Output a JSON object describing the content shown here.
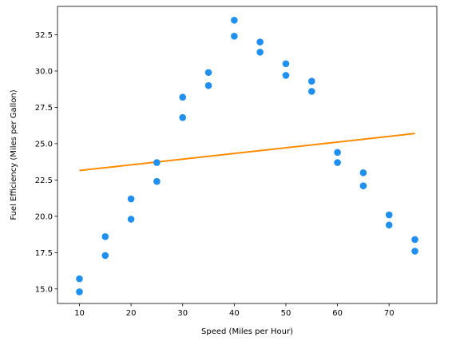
{
  "chart_data": {
    "type": "scatter",
    "title": "",
    "xlabel": "Speed (Miles per Hour)",
    "ylabel": "Fuel Efficiency (Miles per Gallon)",
    "xlim": [
      5.75,
      79.25
    ],
    "ylim": [
      14.0,
      34.45
    ],
    "grid": false,
    "xticks": [
      10,
      20,
      30,
      40,
      50,
      60,
      70
    ],
    "xtick_labels": [
      "10",
      "20",
      "30",
      "40",
      "50",
      "60",
      "70"
    ],
    "yticks": [
      15.0,
      17.5,
      20.0,
      22.5,
      25.0,
      27.5,
      30.0,
      32.5
    ],
    "ytick_labels": [
      "15.0",
      "17.5",
      "20.0",
      "22.5",
      "25.0",
      "27.5",
      "30.0",
      "32.5"
    ],
    "series": [
      {
        "kind": "scatter",
        "color": "#1f8ff0",
        "x": [
          10,
          10,
          15,
          15,
          20,
          20,
          25,
          25,
          30,
          30,
          35,
          35,
          40,
          40,
          45,
          45,
          50,
          50,
          55,
          55,
          60,
          60,
          65,
          65,
          70,
          70,
          75,
          75
        ],
        "y": [
          15.7,
          14.8,
          18.6,
          17.3,
          21.2,
          19.8,
          23.7,
          22.4,
          28.2,
          26.8,
          29.9,
          29.0,
          33.5,
          32.4,
          32.0,
          31.3,
          30.5,
          29.7,
          29.3,
          28.6,
          24.4,
          23.7,
          23.0,
          22.1,
          20.1,
          19.4,
          18.4,
          17.6
        ]
      },
      {
        "kind": "line",
        "color": "#ff8c00",
        "x": [
          10,
          75
        ],
        "y": [
          23.15,
          25.7
        ]
      }
    ]
  }
}
